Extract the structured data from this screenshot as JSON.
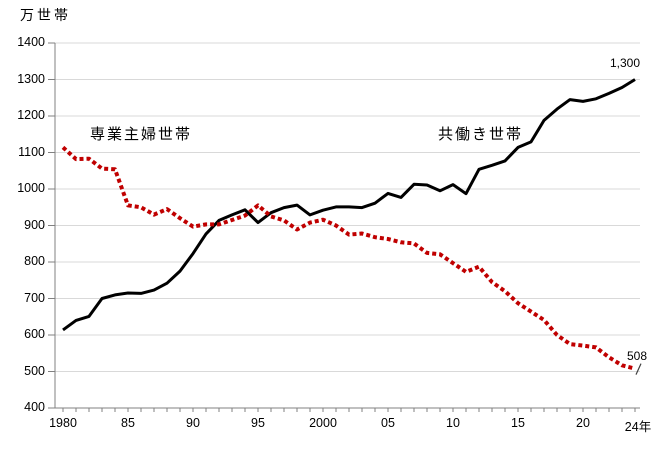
{
  "chart_data": {
    "type": "line",
    "unit_label": "万世帯",
    "x_axis_label_suffix": "24年",
    "ylim": [
      400,
      1400
    ],
    "xlim": [
      1980,
      2024
    ],
    "grid": true,
    "legend_position": "inline-annotations",
    "y_ticks": [
      400,
      500,
      600,
      700,
      800,
      900,
      1000,
      1100,
      1200,
      1300,
      1400
    ],
    "x_tick_labels": [
      {
        "label": "1980",
        "year": 1980
      },
      {
        "label": "85",
        "year": 1985
      },
      {
        "label": "90",
        "year": 1990
      },
      {
        "label": "95",
        "year": 1995
      },
      {
        "label": "2000",
        "year": 2000
      },
      {
        "label": "05",
        "year": 2005
      },
      {
        "label": "10",
        "year": 2010
      },
      {
        "label": "15",
        "year": 2015
      },
      {
        "label": "20",
        "year": 2020
      },
      {
        "label": "24年",
        "year": 2024
      }
    ],
    "x": [
      1980,
      1981,
      1982,
      1983,
      1984,
      1985,
      1986,
      1987,
      1988,
      1989,
      1990,
      1991,
      1992,
      1993,
      1994,
      1995,
      1996,
      1997,
      1998,
      1999,
      2000,
      2001,
      2002,
      2003,
      2004,
      2005,
      2006,
      2007,
      2008,
      2009,
      2010,
      2011,
      2012,
      2013,
      2014,
      2015,
      2016,
      2017,
      2018,
      2019,
      2020,
      2021,
      2022,
      2023,
      2024
    ],
    "series": [
      {
        "name": "専業主婦世帯",
        "style": "dotted",
        "color": "#C00000",
        "end_label": "508",
        "end_value": 508,
        "values": [
          1114,
          1082,
          1083,
          1056,
          1054,
          955,
          950,
          930,
          945,
          920,
          897,
          903,
          903,
          915,
          927,
          955,
          925,
          914,
          889,
          908,
          916,
          900,
          875,
          878,
          868,
          863,
          854,
          851,
          825,
          821,
          797,
          773,
          787,
          745,
          720,
          687,
          664,
          641,
          600,
          575,
          571,
          566,
          539,
          517,
          508
        ]
      },
      {
        "name": "共働き世帯",
        "style": "solid",
        "color": "#000000",
        "end_label": "1,300",
        "end_value": 1300,
        "values": [
          614,
          640,
          651,
          700,
          710,
          715,
          714,
          723,
          742,
          775,
          823,
          877,
          914,
          929,
          943,
          908,
          935,
          949,
          956,
          929,
          942,
          951,
          951,
          949,
          961,
          988,
          977,
          1013,
          1011,
          995,
          1012,
          987,
          1054,
          1065,
          1077,
          1114,
          1129,
          1188,
          1219,
          1245,
          1240,
          1247,
          1262,
          1278,
          1300
        ]
      }
    ],
    "colors": {
      "grid": "#D9D9D9",
      "axis": "#808080",
      "text": "#000000"
    }
  }
}
